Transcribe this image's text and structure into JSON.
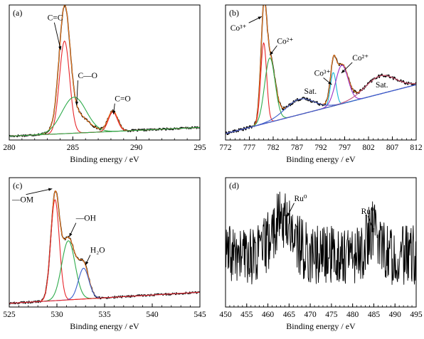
{
  "chart_data": [
    {
      "type": "line",
      "panel_label": "(a)",
      "xlabel": "Binding energy / eV",
      "ylabel": "",
      "xlim": [
        280,
        295
      ],
      "xticks": [
        280,
        285,
        290,
        295
      ],
      "minor_step": 1,
      "ylim": [
        0,
        1.05
      ],
      "grid": false,
      "series": [
        {
          "role": "raw",
          "color": "#000000",
          "peaks": [
            [
              284.35,
              0.88,
              0.42
            ],
            [
              285.1,
              0.16,
              1.0
            ],
            [
              288.15,
              0.16,
              0.38
            ]
          ],
          "baseline": [
            0.03,
            0.0045
          ],
          "noise": 0.008
        },
        {
          "role": "envelope",
          "color": "#f07a1c",
          "peaks": [
            [
              284.35,
              0.88,
              0.42
            ],
            [
              285.1,
              0.16,
              1.0
            ],
            [
              288.15,
              0.16,
              0.38
            ]
          ],
          "baseline": [
            0.03,
            0.0045
          ]
        },
        {
          "role": "component",
          "color": "#e8262b",
          "peaks": [
            [
              284.35,
              0.72,
              0.4
            ]
          ],
          "baseline": [
            0.03,
            0.0045
          ]
        },
        {
          "role": "component",
          "color": "#2eab4b",
          "peaks": [
            [
              285.1,
              0.28,
              0.95
            ]
          ],
          "baseline": [
            0.03,
            0.0045
          ]
        },
        {
          "role": "component",
          "color": "#e8262b",
          "peaks": [
            [
              288.15,
              0.15,
              0.36
            ]
          ],
          "baseline": [
            0.03,
            0.0045
          ]
        },
        {
          "role": "background",
          "color": "#2eab4b",
          "peaks": [],
          "baseline": [
            0.03,
            0.0045
          ]
        }
      ],
      "annotations": [
        {
          "text": "C=C",
          "x": 283.0,
          "y": 0.93,
          "ax": 284.05,
          "ay": 0.7
        },
        {
          "text": "C—O",
          "x": 285.4,
          "y": 0.48,
          "ax": 285.3,
          "ay": 0.27
        },
        {
          "text": "C=O",
          "x": 288.3,
          "y": 0.3,
          "ax": 288.2,
          "ay": 0.2
        }
      ]
    },
    {
      "type": "line",
      "panel_label": "(b)",
      "xlabel": "Binding energy / eV",
      "ylabel": "",
      "xlim": [
        772,
        812
      ],
      "xticks": [
        772,
        777,
        782,
        787,
        792,
        797,
        802,
        807,
        812
      ],
      "minor_step": 1,
      "ylim": [
        0,
        1.05
      ],
      "grid": false,
      "series": [
        {
          "role": "raw",
          "color": "#000000",
          "peaks": [
            [
              780.0,
              0.7,
              0.6
            ],
            [
              781.3,
              0.48,
              1.1
            ],
            [
              787.5,
              0.12,
              3.0
            ],
            [
              794.6,
              0.26,
              0.6
            ],
            [
              796.4,
              0.3,
              1.3
            ],
            [
              804.5,
              0.14,
              3.2
            ]
          ],
          "baseline": [
            0.05,
            0.0095
          ],
          "noise": 0.012
        },
        {
          "role": "envelope",
          "color": "#f07a1c",
          "peaks": [
            [
              780.0,
              0.7,
              0.6
            ],
            [
              781.3,
              0.48,
              1.1
            ],
            [
              787.5,
              0.12,
              3.0
            ],
            [
              794.6,
              0.26,
              0.6
            ],
            [
              796.4,
              0.3,
              1.3
            ],
            [
              804.5,
              0.14,
              3.2
            ]
          ],
          "baseline": [
            0.05,
            0.0095
          ]
        },
        {
          "role": "component",
          "color": "#e8262b",
          "peaks": [
            [
              780.0,
              0.63,
              0.62
            ]
          ],
          "baseline": [
            0.05,
            0.0095
          ]
        },
        {
          "role": "component",
          "color": "#2eab4b",
          "peaks": [
            [
              781.3,
              0.5,
              1.1
            ]
          ],
          "baseline": [
            0.05,
            0.0095
          ]
        },
        {
          "role": "component",
          "color": "#3a5fcd",
          "peaks": [
            [
              787.5,
              0.12,
              3.0
            ]
          ],
          "baseline": [
            0.05,
            0.0095
          ]
        },
        {
          "role": "component",
          "color": "#18b8d6",
          "peaks": [
            [
              794.6,
              0.26,
              0.6
            ]
          ],
          "baseline": [
            0.05,
            0.0095
          ]
        },
        {
          "role": "component",
          "color": "#9b30c8",
          "peaks": [
            [
              796.4,
              0.3,
              1.3
            ]
          ],
          "baseline": [
            0.05,
            0.0095
          ]
        },
        {
          "role": "component",
          "color": "#c0507a",
          "peaks": [
            [
              804.5,
              0.14,
              3.2
            ]
          ],
          "baseline": [
            0.05,
            0.0095
          ]
        },
        {
          "role": "background",
          "color": "#3a5fcd",
          "peaks": [],
          "baseline": [
            0.05,
            0.0095
          ]
        }
      ],
      "annotations": [
        {
          "text": "Co³⁺",
          "x": 773.0,
          "y": 0.85,
          "ax": 779.6,
          "ay": 0.96
        },
        {
          "text": "Co²⁺",
          "x": 782.8,
          "y": 0.75,
          "ax": 781.3,
          "ay": 0.66
        },
        {
          "text": "Co³⁺",
          "x": 790.6,
          "y": 0.5,
          "ax": 794.3,
          "ay": 0.43
        },
        {
          "text": "Co²⁺",
          "x": 798.6,
          "y": 0.62,
          "ax": 796.3,
          "ay": 0.52
        },
        {
          "text": "Sat.",
          "x": 788.5,
          "y": 0.36,
          "ax": null,
          "ay": null
        },
        {
          "text": "Sat.",
          "x": 803.5,
          "y": 0.41,
          "ax": null,
          "ay": null
        }
      ]
    },
    {
      "type": "line",
      "panel_label": "(c)",
      "xlabel": "Binding energy / eV",
      "ylabel": "",
      "xlim": [
        525,
        545
      ],
      "xticks": [
        525,
        530,
        535,
        540,
        545
      ],
      "minor_step": 1,
      "ylim": [
        0,
        1.05
      ],
      "grid": false,
      "series": [
        {
          "role": "raw",
          "color": "#000000",
          "peaks": [
            [
              529.8,
              0.82,
              0.45
            ],
            [
              531.2,
              0.5,
              0.7
            ],
            [
              532.8,
              0.27,
              0.55
            ]
          ],
          "baseline": [
            0.03,
            0.0045
          ],
          "noise": 0.008
        },
        {
          "role": "envelope",
          "color": "#f07a1c",
          "peaks": [
            [
              529.8,
              0.82,
              0.45
            ],
            [
              531.2,
              0.5,
              0.7
            ],
            [
              532.8,
              0.27,
              0.55
            ]
          ],
          "baseline": [
            0.03,
            0.0045
          ]
        },
        {
          "role": "component",
          "color": "#e8262b",
          "peaks": [
            [
              529.8,
              0.82,
              0.45
            ]
          ],
          "baseline": [
            0.03,
            0.0045
          ]
        },
        {
          "role": "component",
          "color": "#2eab4b",
          "peaks": [
            [
              531.2,
              0.48,
              0.7
            ]
          ],
          "baseline": [
            0.03,
            0.0045
          ]
        },
        {
          "role": "component",
          "color": "#3a5fcd",
          "peaks": [
            [
              532.8,
              0.25,
              0.55
            ]
          ],
          "baseline": [
            0.03,
            0.0045
          ]
        },
        {
          "role": "background",
          "color": "#e8262b",
          "peaks": [],
          "baseline": [
            0.03,
            0.0045
          ]
        }
      ],
      "annotations": [
        {
          "text": "—OM",
          "x": 525.3,
          "y": 0.85,
          "ax": 529.5,
          "ay": 0.96
        },
        {
          "text": "—OH",
          "x": 532.0,
          "y": 0.7,
          "ax": 531.3,
          "ay": 0.57
        },
        {
          "text": "H₂O",
          "x": 533.5,
          "y": 0.44,
          "ax": 533.0,
          "ay": 0.34
        }
      ]
    },
    {
      "type": "line",
      "panel_label": "(d)",
      "xlabel": "Binding energy / eV",
      "ylabel": "",
      "xlim": [
        450,
        495
      ],
      "xticks": [
        450,
        455,
        460,
        465,
        470,
        475,
        480,
        485,
        490,
        495
      ],
      "minor_step": 1,
      "ylim": [
        0,
        1.0
      ],
      "grid": false,
      "series": [
        {
          "role": "noisy",
          "color": "#000000",
          "level": 0.4,
          "peaks": [
            [
              463.5,
              0.28,
              2.5
            ],
            [
              485.0,
              0.2,
              1.5
            ]
          ],
          "noise_amp": 0.23,
          "step": 0.1
        }
      ],
      "annotations": [
        {
          "text": "Ru⁰",
          "x": 466.2,
          "y": 0.82,
          "ax": 464.6,
          "ay": 0.7
        },
        {
          "text": "Ru⁰",
          "x": 482.0,
          "y": 0.72,
          "ax": 485.0,
          "ay": 0.58
        }
      ]
    }
  ]
}
